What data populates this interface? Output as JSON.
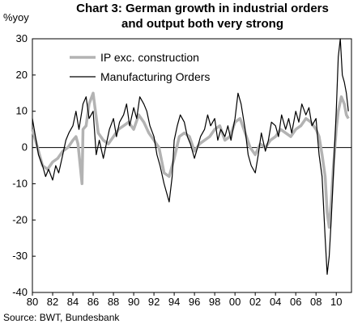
{
  "chart_data": {
    "type": "line",
    "title": "Chart 3: German growth in industrial orders and output both very strong",
    "title_lines": [
      "Chart 3: German growth in industrial orders",
      "and output both very strong"
    ],
    "ylabel": "%yoy",
    "xlabel": "",
    "source": "Source: BWT, Bundesbank",
    "xlim": [
      1980,
      2011.5
    ],
    "ylim": [
      -40,
      30
    ],
    "yticks": [
      -40,
      -30,
      -20,
      -10,
      0,
      10,
      20,
      30
    ],
    "xtick_years": [
      1980,
      1982,
      1984,
      1986,
      1988,
      1990,
      1992,
      1994,
      1996,
      1998,
      2000,
      2002,
      2004,
      2006,
      2008,
      2010
    ],
    "xtick_labels": [
      "80",
      "82",
      "84",
      "86",
      "88",
      "90",
      "92",
      "94",
      "96",
      "98",
      "00",
      "02",
      "04",
      "06",
      "08",
      "10"
    ],
    "grid": false,
    "legend_position": "top-left",
    "series": [
      {
        "name": "IP exc. construction",
        "color": "#b3b3b3",
        "x": [
          1980.0,
          1980.5,
          1981.0,
          1981.5,
          1982.0,
          1982.5,
          1983.0,
          1983.5,
          1984.0,
          1984.3,
          1984.5,
          1984.9,
          1985.0,
          1985.3,
          1985.6,
          1986.0,
          1986.5,
          1987.0,
          1987.5,
          1988.0,
          1988.5,
          1989.0,
          1989.5,
          1990.0,
          1990.5,
          1991.0,
          1991.5,
          1992.0,
          1992.5,
          1993.0,
          1993.5,
          1994.0,
          1994.5,
          1995.0,
          1995.5,
          1996.0,
          1996.5,
          1997.0,
          1997.5,
          1998.0,
          1998.5,
          1999.0,
          1999.5,
          2000.0,
          2000.5,
          2001.0,
          2001.5,
          2002.0,
          2002.5,
          2003.0,
          2003.5,
          2004.0,
          2004.5,
          2005.0,
          2005.5,
          2006.0,
          2006.5,
          2007.0,
          2007.5,
          2008.0,
          2008.3,
          2008.6,
          2008.9,
          2009.1,
          2009.3,
          2009.5,
          2009.7,
          2010.0,
          2010.2,
          2010.5,
          2010.8,
          2011.0,
          2011.2
        ],
        "values": [
          5,
          0,
          -5,
          -6,
          -4,
          -3,
          -1,
          0,
          2,
          3,
          1,
          -10,
          5,
          6,
          12,
          15,
          4,
          2,
          1,
          3,
          5,
          6,
          7,
          5,
          9,
          7,
          4,
          2,
          0,
          -7,
          -8,
          -3,
          3,
          4,
          3,
          -1,
          1,
          2,
          3,
          5,
          6,
          2,
          3,
          7,
          8,
          4,
          0,
          -2,
          1,
          0,
          2,
          3,
          5,
          4,
          3,
          5,
          6,
          8,
          7,
          5,
          3,
          -2,
          -8,
          -18,
          -22,
          -15,
          -6,
          5,
          10,
          14,
          12,
          9,
          8
        ]
      },
      {
        "name": "Manufacturing Orders",
        "color": "#000000",
        "x": [
          1980.0,
          1980.3,
          1980.6,
          1981.0,
          1981.3,
          1981.6,
          1982.0,
          1982.3,
          1982.6,
          1983.0,
          1983.3,
          1983.6,
          1984.0,
          1984.3,
          1984.6,
          1985.0,
          1985.3,
          1985.6,
          1986.0,
          1986.3,
          1986.6,
          1987.0,
          1987.3,
          1987.6,
          1988.0,
          1988.3,
          1988.6,
          1989.0,
          1989.3,
          1989.6,
          1990.0,
          1990.3,
          1990.6,
          1991.0,
          1991.3,
          1991.6,
          1992.0,
          1992.3,
          1992.6,
          1993.0,
          1993.2,
          1993.5,
          1993.8,
          1994.0,
          1994.3,
          1994.6,
          1995.0,
          1995.3,
          1995.6,
          1996.0,
          1996.3,
          1996.6,
          1997.0,
          1997.3,
          1997.6,
          1998.0,
          1998.3,
          1998.6,
          1999.0,
          1999.3,
          1999.6,
          2000.0,
          2000.3,
          2000.6,
          2001.0,
          2001.3,
          2001.6,
          2002.0,
          2002.3,
          2002.6,
          2003.0,
          2003.3,
          2003.6,
          2004.0,
          2004.3,
          2004.6,
          2005.0,
          2005.3,
          2005.6,
          2006.0,
          2006.3,
          2006.6,
          2007.0,
          2007.3,
          2007.6,
          2008.0,
          2008.3,
          2008.6,
          2008.9,
          2009.1,
          2009.3,
          2009.5,
          2009.7,
          2010.0,
          2010.2,
          2010.4,
          2010.6,
          2010.8,
          2011.0,
          2011.2
        ],
        "values": [
          8,
          3,
          -2,
          -5,
          -8,
          -6,
          -9,
          -5,
          -7,
          -2,
          2,
          4,
          6,
          10,
          5,
          12,
          14,
          8,
          10,
          -2,
          2,
          -3,
          1,
          5,
          8,
          3,
          7,
          9,
          12,
          6,
          11,
          8,
          14,
          12,
          10,
          6,
          3,
          -2,
          -5,
          -10,
          -12,
          -15,
          -8,
          2,
          6,
          9,
          7,
          3,
          1,
          -3,
          0,
          3,
          5,
          9,
          6,
          8,
          2,
          5,
          3,
          6,
          2,
          8,
          15,
          12,
          5,
          -2,
          -5,
          -7,
          -2,
          4,
          -1,
          2,
          7,
          6,
          3,
          9,
          5,
          8,
          4,
          10,
          7,
          12,
          9,
          11,
          6,
          8,
          -2,
          -8,
          -25,
          -35,
          -30,
          -20,
          -8,
          10,
          25,
          30,
          20,
          18,
          15,
          10
        ]
      }
    ]
  }
}
